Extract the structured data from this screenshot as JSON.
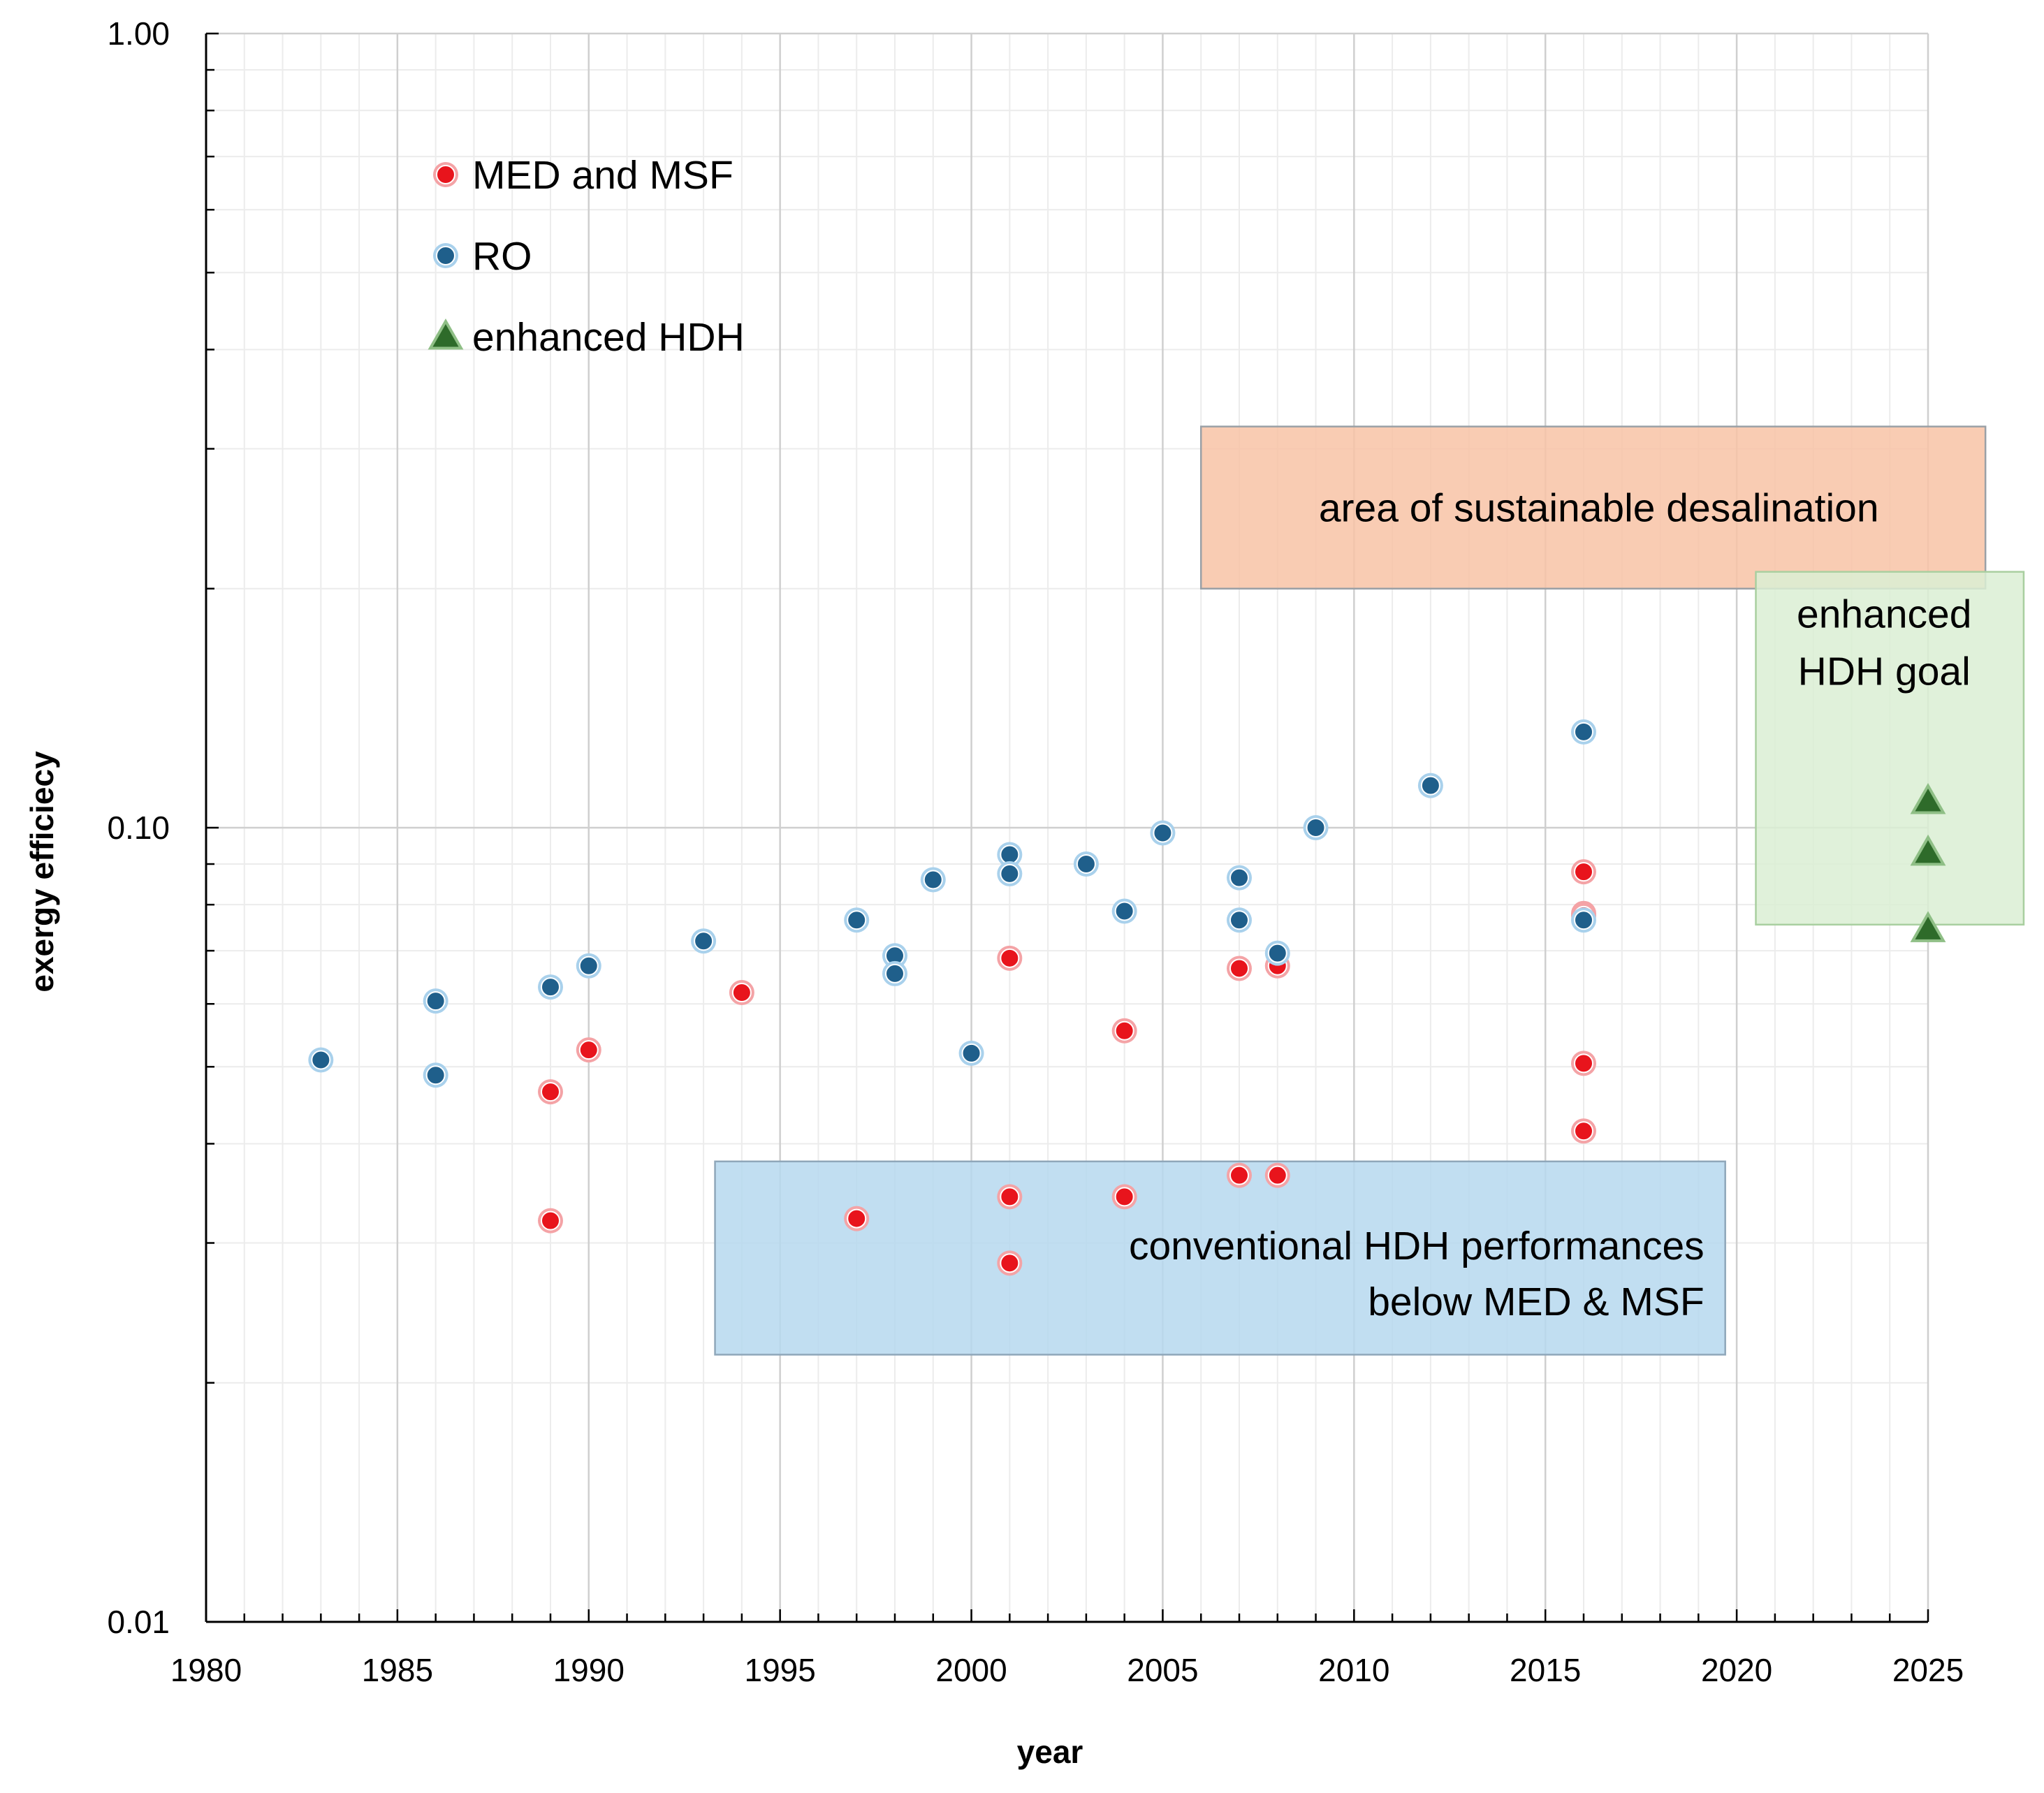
{
  "chart_data": {
    "type": "scatter",
    "xlabel": "year",
    "ylabel": "exergy efficiecy",
    "xlim": [
      1980,
      2025
    ],
    "ylim": [
      0.01,
      1.0
    ],
    "yscale": "log",
    "grid": true,
    "x_ticks": [
      1980,
      1985,
      1990,
      1995,
      2000,
      2005,
      2010,
      2015,
      2020,
      2025
    ],
    "x_tick_labels": [
      "1980",
      "1985",
      "1990",
      "1995",
      "2000",
      "2005",
      "2010",
      "2015",
      "2020",
      "2025"
    ],
    "y_ticks": [
      0.01,
      0.1,
      1.0
    ],
    "y_tick_labels": [
      "0.01",
      "0.10",
      "1.00"
    ],
    "legend_position": "top-left",
    "series": [
      {
        "name": "MED and MSF",
        "marker": "circle",
        "color": "#e8141c",
        "x": [
          1989,
          1989,
          1990,
          1994,
          1997,
          2001,
          2001,
          2001,
          2004,
          2004,
          2007,
          2007,
          2008,
          2008,
          2016,
          2016,
          2016,
          2016,
          2016
        ],
        "y": [
          0.0465,
          0.032,
          0.0525,
          0.062,
          0.0322,
          0.0685,
          0.0343,
          0.0283,
          0.0555,
          0.0343,
          0.0665,
          0.0365,
          0.067,
          0.0365,
          0.088,
          0.078,
          0.0775,
          0.0505,
          0.0415
        ]
      },
      {
        "name": "RO",
        "marker": "circle",
        "color": "#1f5f8b",
        "x": [
          1983,
          1986,
          1986,
          1989,
          1990,
          1993,
          1997,
          1998,
          1998,
          1999,
          2000,
          2001,
          2001,
          2003,
          2004,
          2005,
          2007,
          2007,
          2008,
          2009,
          2012,
          2016,
          2016
        ],
        "y": [
          0.051,
          0.0605,
          0.0488,
          0.063,
          0.067,
          0.072,
          0.0765,
          0.069,
          0.0655,
          0.086,
          0.052,
          0.0925,
          0.0875,
          0.09,
          0.0785,
          0.0985,
          0.0865,
          0.0765,
          0.0695,
          0.1,
          0.113,
          0.132,
          0.0765
        ]
      },
      {
        "name": "enhanced HDH",
        "marker": "triangle",
        "color": "#2e6b2a",
        "x": [
          2025,
          2025,
          2025
        ],
        "y": [
          0.108,
          0.093,
          0.0745
        ]
      }
    ],
    "regions": [
      {
        "name": "area of sustainable desalination",
        "label_lines": [
          "area of sustainable desalination"
        ],
        "x_range": [
          2006,
          2026.5
        ],
        "y_range": [
          0.2,
          0.32
        ],
        "fill": "#f8c3a6",
        "stroke": "#9aa0a6"
      },
      {
        "name": "enhanced HDH goal",
        "label_lines": [
          "enhanced",
          "HDH goal"
        ],
        "x_range": [
          2020.5,
          2027.5
        ],
        "y_range": [
          0.0755,
          0.21
        ],
        "fill": "#dbeed3",
        "stroke": "#a9cfa0"
      },
      {
        "name": "conventional HDH performances below MED & MSF",
        "label_lines": [
          "conventional HDH performances",
          "below MED & MSF"
        ],
        "x_range": [
          1993.3,
          2019.7
        ],
        "y_range": [
          0.0217,
          0.038
        ],
        "fill": "#b6d8ee",
        "stroke": "#8fa7ba"
      }
    ]
  }
}
